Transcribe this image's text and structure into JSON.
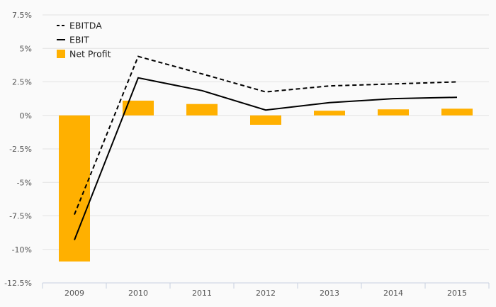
{
  "chart_data": {
    "type": "bar",
    "categories": [
      "2009",
      "2010",
      "2011",
      "2012",
      "2013",
      "2014",
      "2015"
    ],
    "series": [
      {
        "name": "Net Profit",
        "type": "bar",
        "values": [
          -10.9,
          1.1,
          0.85,
          -0.7,
          0.35,
          0.45,
          0.5
        ],
        "color": "#ffb000"
      },
      {
        "name": "EBIT",
        "type": "line",
        "style": "solid",
        "values": [
          -9.3,
          2.8,
          1.85,
          0.4,
          0.95,
          1.25,
          1.35
        ],
        "color": "#000000"
      },
      {
        "name": "EBITDA",
        "type": "line",
        "style": "dashed",
        "values": [
          -7.4,
          4.4,
          3.1,
          1.75,
          2.2,
          2.35,
          2.5
        ],
        "color": "#000000"
      }
    ],
    "ylim": [
      -12.5,
      7.5
    ],
    "yticks": [
      7.5,
      5,
      2.5,
      0,
      -2.5,
      -5,
      -7.5,
      -10,
      -12.5
    ],
    "ytick_labels": [
      "7.5%",
      "5%",
      "2.5%",
      "0%",
      "-2.5%",
      "-5%",
      "-7.5%",
      "-10%",
      "-12.5%"
    ],
    "grid": true,
    "legend": {
      "position": "top-left",
      "items": [
        {
          "label": "EBITDA",
          "symbol": "dashed-line"
        },
        {
          "label": "EBIT",
          "symbol": "solid-line"
        },
        {
          "label": "Net Profit",
          "symbol": "square"
        }
      ]
    }
  }
}
